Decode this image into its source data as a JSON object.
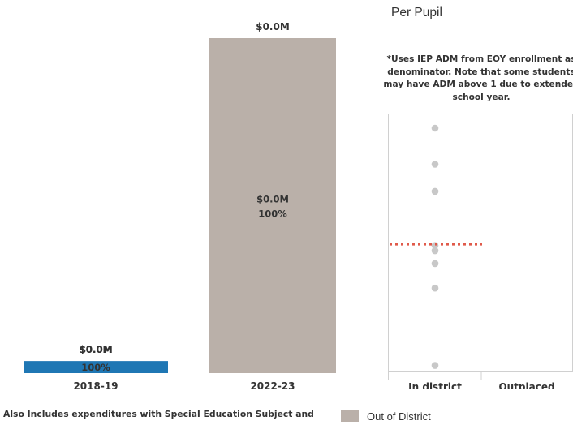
{
  "chart_data": [
    {
      "type": "bar",
      "categories": [
        "2018-19",
        "2022-23"
      ],
      "series": [
        {
          "color": "#1f77b4",
          "values": [
            0.0,
            null
          ],
          "value_labels": [
            "$0.0M",
            null
          ],
          "pct_labels": [
            "100%",
            null
          ]
        },
        {
          "name": "Out of District",
          "color": "#bab0a9",
          "values": [
            null,
            0.0
          ],
          "value_labels": [
            null,
            "$0.0M"
          ],
          "pct_labels": [
            null,
            "100%"
          ]
        }
      ],
      "relative_heights": [
        0.036,
        1.0
      ],
      "totals": [
        "$0.0M",
        "$0.0M"
      ],
      "legend": [
        "Out of District"
      ],
      "legend_position": "bottom",
      "footnote": "Also Includes expenditures with Special Education Subject and"
    },
    {
      "type": "scatter",
      "title": "Per Pupil",
      "note": "*Uses IEP ADM from EOY enrollment as denominator. Note that some students may have ADM above 1 due to extended school year.",
      "categories": [
        "In district",
        "Outplaced"
      ],
      "points_in_district": [
        0.945,
        0.805,
        0.7,
        0.49,
        0.47,
        0.42,
        0.325,
        0.025
      ],
      "points_outplaced": [],
      "average_line": 0.495,
      "average_color": "#e05a4b",
      "grid": false
    }
  ]
}
